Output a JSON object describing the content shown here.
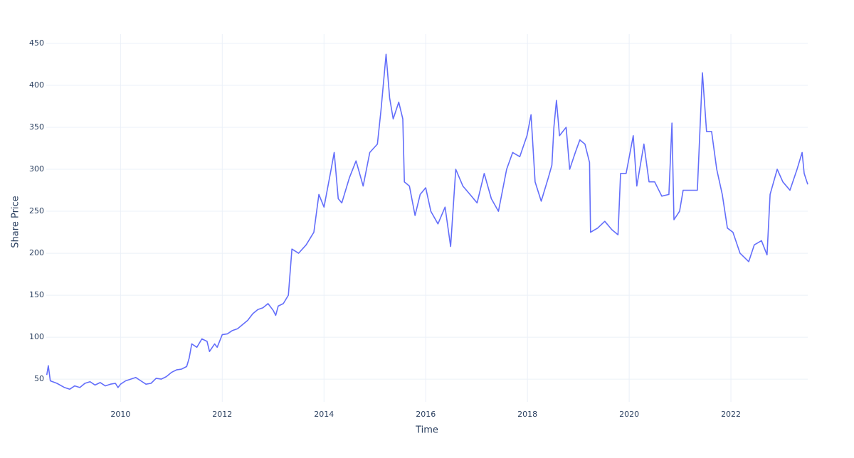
{
  "chart_data": {
    "type": "line",
    "x_label": "Time",
    "y_label": "Share Price",
    "xlim": [
      2008.54,
      2023.51
    ],
    "ylim": [
      23,
      461
    ],
    "xticks": [
      2010,
      2012,
      2014,
      2016,
      2018,
      2020,
      2022
    ],
    "yticks": [
      50,
      100,
      150,
      200,
      250,
      300,
      350,
      400,
      450
    ],
    "grid": true,
    "x": [
      2008.55,
      2008.58,
      2008.62,
      2008.75,
      2008.9,
      2009.0,
      2009.1,
      2009.2,
      2009.3,
      2009.4,
      2009.5,
      2009.6,
      2009.7,
      2009.8,
      2009.9,
      2009.95,
      2010.0,
      2010.1,
      2010.2,
      2010.3,
      2010.4,
      2010.5,
      2010.6,
      2010.7,
      2010.8,
      2010.9,
      2011.0,
      2011.1,
      2011.2,
      2011.3,
      2011.35,
      2011.4,
      2011.5,
      2011.6,
      2011.7,
      2011.75,
      2011.85,
      2011.9,
      2012.0,
      2012.1,
      2012.2,
      2012.3,
      2012.4,
      2012.5,
      2012.6,
      2012.7,
      2012.8,
      2012.9,
      2013.0,
      2013.05,
      2013.1,
      2013.2,
      2013.3,
      2013.37,
      2013.5,
      2013.65,
      2013.8,
      2013.9,
      2014.0,
      2014.14,
      2014.2,
      2014.28,
      2014.35,
      2014.5,
      2014.63,
      2014.77,
      2014.9,
      2015.05,
      2015.12,
      2015.22,
      2015.29,
      2015.36,
      2015.47,
      2015.55,
      2015.58,
      2015.68,
      2015.79,
      2015.89,
      2016.0,
      2016.1,
      2016.24,
      2016.38,
      2016.49,
      2016.59,
      2016.73,
      2016.87,
      2017.01,
      2017.15,
      2017.29,
      2017.43,
      2017.59,
      2017.71,
      2017.85,
      2017.99,
      2018.07,
      2018.15,
      2018.27,
      2018.41,
      2018.48,
      2018.52,
      2018.57,
      2018.63,
      2018.76,
      2018.83,
      2018.94,
      2019.03,
      2019.13,
      2019.22,
      2019.24,
      2019.38,
      2019.52,
      2019.66,
      2019.78,
      2019.83,
      2019.94,
      2020.08,
      2020.15,
      2020.29,
      2020.39,
      2020.5,
      2020.64,
      2020.78,
      2020.84,
      2020.88,
      2020.99,
      2021.06,
      2021.2,
      2021.34,
      2021.44,
      2021.52,
      2021.62,
      2021.72,
      2021.83,
      2021.93,
      2022.04,
      2022.18,
      2022.35,
      2022.46,
      2022.6,
      2022.71,
      2022.77,
      2022.91,
      2023.02,
      2023.16,
      2023.3,
      2023.4,
      2023.44,
      2023.51
    ],
    "series": [
      {
        "name": "Share Price",
        "color": "#636efa",
        "values": [
          55,
          66,
          48,
          45,
          40,
          38,
          42,
          40,
          45,
          47,
          43,
          46,
          42,
          44,
          45,
          40,
          44,
          48,
          50,
          52,
          48,
          44,
          45,
          51,
          50,
          53,
          58,
          61,
          62,
          65,
          75,
          92,
          88,
          98,
          95,
          83,
          92,
          88,
          103,
          104,
          108,
          110,
          115,
          120,
          128,
          133,
          135,
          140,
          132,
          126,
          137,
          140,
          150,
          205,
          200,
          210,
          225,
          270,
          255,
          300,
          320,
          265,
          260,
          290,
          310,
          280,
          320,
          330,
          370,
          437,
          385,
          360,
          380,
          360,
          285,
          280,
          245,
          270,
          278,
          250,
          235,
          255,
          208,
          300,
          280,
          270,
          260,
          295,
          265,
          250,
          300,
          320,
          315,
          340,
          365,
          285,
          262,
          290,
          305,
          350,
          382,
          340,
          350,
          300,
          320,
          335,
          330,
          308,
          225,
          230,
          238,
          228,
          222,
          295,
          295,
          340,
          280,
          330,
          285,
          285,
          268,
          270,
          355,
          240,
          250,
          275,
          275,
          275,
          415,
          345,
          345,
          300,
          270,
          230,
          225,
          200,
          190,
          210,
          215,
          198,
          270,
          300,
          285,
          275,
          300,
          320,
          295,
          282
        ]
      }
    ]
  }
}
